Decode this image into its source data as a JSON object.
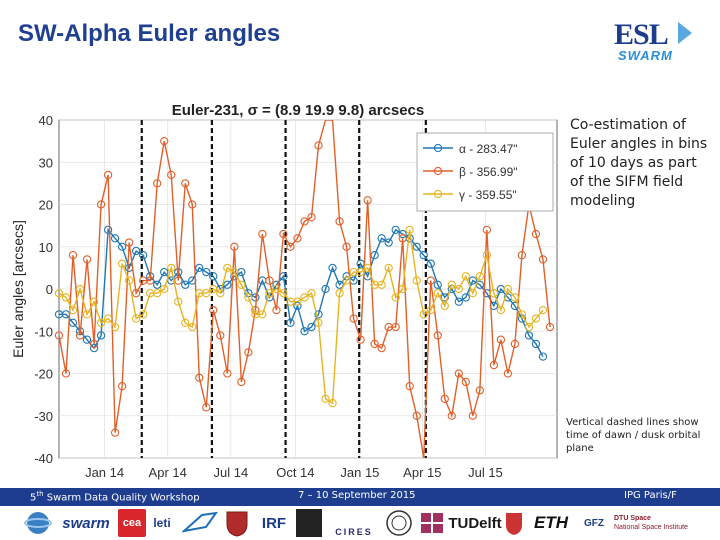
{
  "slide": {
    "title": "SW-Alpha Euler angles",
    "logo_text": "ESL",
    "logo_subtext": "SWARM",
    "note1": "Co-estimation of Euler angles in bins of 10 days as part of the SIFM field modeling",
    "note2": "Vertical dashed lines show time of dawn / dusk orbital plane"
  },
  "footer": {
    "left_prefix": "5",
    "left_sup": "th",
    "left_rest": " Swarm Data Quality Workshop",
    "middle": "7 – 10 September 2015",
    "right": "IPG Paris/F"
  },
  "partner_logos": [
    "swarm",
    "cea",
    "leti",
    "IRF",
    "CIRES",
    "TUDelft",
    "ETH",
    "GFZ",
    "DTU Space",
    "National Space Institute"
  ],
  "chart_data": {
    "type": "line",
    "title": "Euler-231, σ = (8.9  19.9  9.8) arcsecs",
    "ylabel": "Euler angles [arcsecs]",
    "xlabel": "",
    "xlim": [
      0,
      71
    ],
    "ylim": [
      -40,
      40
    ],
    "yticks": [
      40,
      30,
      20,
      10,
      0,
      -10,
      -20,
      -30,
      -40
    ],
    "xticks": [
      {
        "label": "Jan 14",
        "x": 6.5
      },
      {
        "label": "Apr 14",
        "x": 15.5
      },
      {
        "label": "Jul 14",
        "x": 24.5
      },
      {
        "label": "Oct 14",
        "x": 33.7
      },
      {
        "label": "Jan 15",
        "x": 42.9
      },
      {
        "label": "Apr 15",
        "x": 51.8
      },
      {
        "label": "Jul 15",
        "x": 60.8
      }
    ],
    "grid": true,
    "legend_position": "top-right",
    "dawn_dusk_lines": [
      11.8,
      21.8,
      32.3,
      42.8,
      52.3
    ],
    "series": [
      {
        "name": "α - 283.47\"",
        "color": "#1f77b4",
        "start": 0,
        "values": [
          -6,
          -6,
          -8,
          -10,
          -12,
          -14,
          -11,
          14,
          12,
          10,
          5,
          9,
          8,
          3,
          1,
          4,
          2,
          4,
          1,
          2,
          5,
          4,
          3,
          0,
          1,
          3,
          4,
          -1,
          -2,
          2,
          -2,
          1,
          3,
          -8,
          -4,
          -10,
          -9,
          -6,
          0,
          5,
          1,
          3,
          2,
          6,
          3,
          8,
          12,
          11,
          14,
          13,
          12,
          10,
          8,
          6,
          1,
          -2,
          0,
          -3,
          -2,
          2,
          1,
          -1,
          -4,
          0,
          -2,
          -4,
          -7,
          -11,
          -13,
          -16
        ]
      },
      {
        "name": "β - 356.99\"",
        "color": "#e0602a",
        "start": 0,
        "values": [
          -11,
          -20,
          8,
          -11,
          7,
          -13,
          20,
          27,
          -34,
          -23,
          11,
          -1,
          2,
          2,
          25,
          35,
          27,
          2,
          25,
          20,
          -21,
          -28,
          -5,
          -11,
          -20,
          10,
          -22,
          -15,
          -5,
          13,
          2,
          -5,
          13,
          10,
          12,
          16,
          17,
          34,
          66,
          48,
          16,
          10,
          -7,
          -12,
          21,
          -13,
          -14,
          -9,
          -9,
          12,
          -23,
          -30,
          -41,
          2,
          -11,
          -26,
          -30,
          -20,
          -22,
          -30,
          -24,
          14,
          -18,
          -12,
          -20,
          -13,
          8,
          20,
          13,
          7,
          -9
        ]
      },
      {
        "name": "γ - 359.55\"",
        "color": "#e6b422",
        "start": 0,
        "values": [
          -1,
          -2,
          -5,
          0,
          -6,
          -3,
          -8,
          -7,
          -9,
          6,
          2,
          -7,
          -6,
          -1,
          -1,
          0,
          5,
          -3,
          -8,
          -9,
          -1,
          -1,
          0,
          -1,
          5,
          4,
          1,
          -2,
          -6,
          -6,
          -1,
          0,
          -1,
          -3,
          -3,
          -2,
          -1,
          -8,
          -26,
          -27,
          -1,
          2,
          4,
          4,
          5,
          1,
          1,
          5,
          -2,
          0,
          14,
          2,
          -6,
          -5,
          -1,
          -4,
          1,
          0,
          3,
          -1,
          3,
          8,
          -1,
          -5,
          0,
          -2,
          -6,
          -9,
          -7,
          -5
        ]
      }
    ]
  }
}
